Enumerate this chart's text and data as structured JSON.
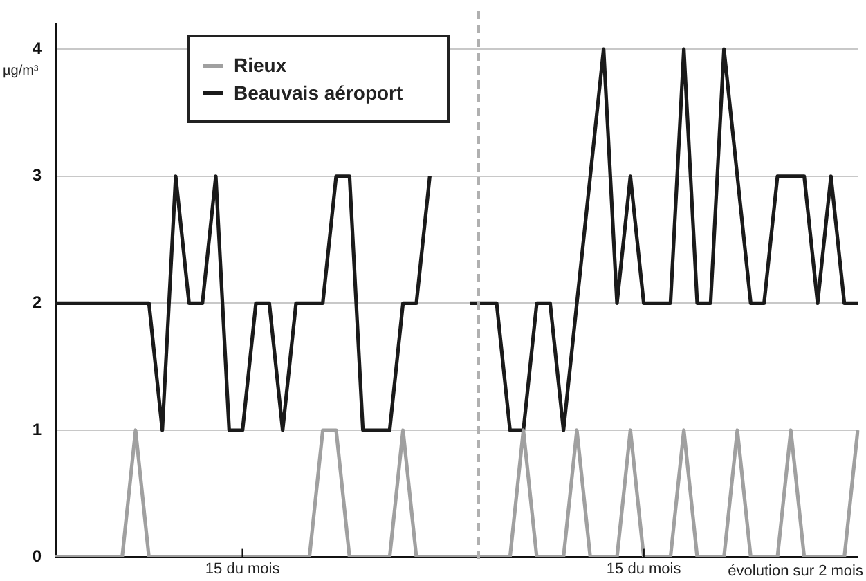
{
  "chart_data": {
    "type": "line",
    "ylabel": "µg/m³",
    "categories": [
      null,
      null,
      null,
      null,
      null,
      null,
      null,
      null,
      null,
      null,
      null,
      null,
      null,
      null,
      "15 du mois",
      null,
      null,
      null,
      null,
      null,
      null,
      null,
      null,
      null,
      null,
      null,
      null,
      null,
      null,
      null,
      null,
      null,
      null,
      null,
      null,
      null,
      null,
      null,
      null,
      null,
      null,
      null,
      null,
      null,
      "15 du mois",
      null,
      null,
      null,
      null,
      null,
      null,
      null,
      null,
      null,
      null,
      null,
      null,
      null,
      null,
      null,
      null
    ],
    "series": [
      {
        "name": "Rieux",
        "color": "#a0a0a0",
        "values": [
          0,
          0,
          0,
          0,
          0,
          0,
          1,
          0,
          0,
          0,
          0,
          0,
          0,
          0,
          0,
          0,
          0,
          0,
          0,
          0,
          1,
          1,
          0,
          0,
          0,
          0,
          1,
          0,
          0,
          0,
          0,
          0,
          0,
          0,
          0,
          1,
          0,
          0,
          0,
          1,
          0,
          0,
          0,
          1,
          0,
          0,
          0,
          1,
          0,
          0,
          0,
          1,
          0,
          0,
          0,
          1,
          0,
          0,
          0,
          0,
          1
        ]
      },
      {
        "name": "Beauvais aéroport",
        "color": "#1a1a1a",
        "values": [
          2,
          2,
          2,
          2,
          2,
          2,
          2,
          2,
          1,
          3,
          2,
          2,
          3,
          1,
          1,
          2,
          2,
          1,
          2,
          2,
          2,
          3,
          3,
          1,
          1,
          1,
          2,
          2,
          3,
          null,
          null,
          2,
          2,
          2,
          1,
          1,
          2,
          2,
          1,
          2,
          3,
          4,
          2,
          3,
          2,
          2,
          2,
          4,
          2,
          2,
          4,
          3,
          2,
          2,
          3,
          3,
          3,
          2,
          3,
          2,
          2
        ]
      }
    ],
    "ylim": [
      0,
      4.2
    ],
    "yticks": [
      0,
      1,
      2,
      3,
      4
    ],
    "grid": "y",
    "legend": "top left",
    "marker": "none",
    "line_style": "solid",
    "annotations": [
      "évolution sur 2 mois"
    ]
  }
}
